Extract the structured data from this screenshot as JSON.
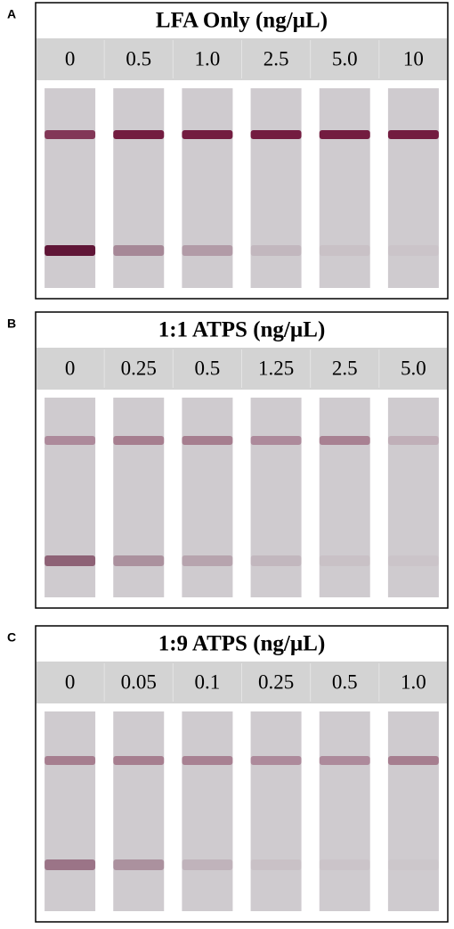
{
  "panels": [
    {
      "label": "A",
      "title": "LFA Only (ng/µL)",
      "concentrations": [
        "0",
        "0.5",
        "1.0",
        "2.5",
        "5.0",
        "10"
      ]
    },
    {
      "label": "B",
      "title": "1:1 ATPS (ng/µL)",
      "concentrations": [
        "0",
        "0.25",
        "0.5",
        "1.25",
        "2.5",
        "5.0"
      ]
    },
    {
      "label": "C",
      "title": "1:9 ATPS (ng/µL)",
      "concentrations": [
        "0",
        "0.05",
        "0.1",
        "0.25",
        "0.5",
        "1.0"
      ]
    }
  ]
}
